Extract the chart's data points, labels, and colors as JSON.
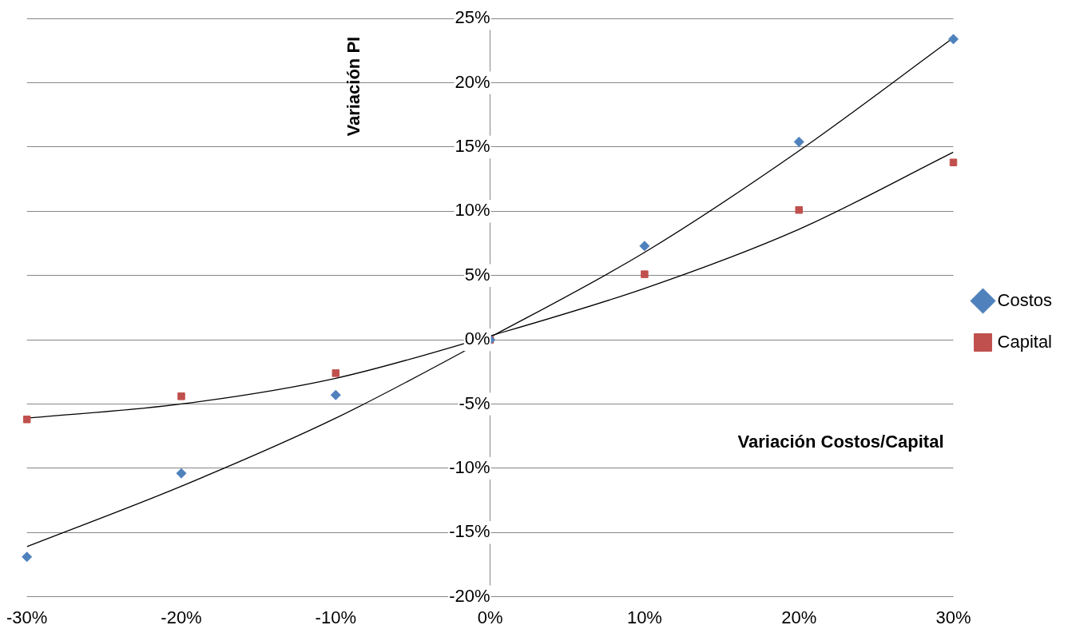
{
  "chart_data": {
    "type": "scatter",
    "xlabel": "Variación Costos/Capital",
    "ylabel": "Variación PI",
    "xlim": [
      -30,
      30
    ],
    "xticks": [
      {
        "value": -30,
        "label": "-30%"
      },
      {
        "value": -20,
        "label": "-20%"
      },
      {
        "value": -10,
        "label": "-10%"
      },
      {
        "value": 0,
        "label": "0%"
      },
      {
        "value": 10,
        "label": "10%"
      },
      {
        "value": 20,
        "label": "20%"
      },
      {
        "value": 30,
        "label": "30%"
      }
    ],
    "ylim": [
      -20,
      25
    ],
    "yticks": [
      {
        "value": -20,
        "label": "-20%"
      },
      {
        "value": -15,
        "label": "-15%"
      },
      {
        "value": -10,
        "label": "-10%"
      },
      {
        "value": -5,
        "label": "-5%"
      },
      {
        "value": 0,
        "label": "0%"
      },
      {
        "value": 5,
        "label": "5%"
      },
      {
        "value": 10,
        "label": "10%"
      },
      {
        "value": 15,
        "label": "15%"
      },
      {
        "value": 20,
        "label": "20%"
      },
      {
        "value": 25,
        "label": "25%"
      }
    ],
    "grid": "y",
    "legend": "right",
    "series": [
      {
        "name": "Costos",
        "type": "scatter",
        "marker": "diamond",
        "color": "#4f81bd",
        "x": [
          -30,
          -20,
          -10,
          0,
          10,
          20,
          30
        ],
        "values": [
          -16.9,
          -10.4,
          -4.3,
          0,
          7.3,
          15.4,
          23.4
        ]
      },
      {
        "name": "Capital",
        "type": "scatter",
        "marker": "square",
        "color": "#c0504d",
        "x": [
          -30,
          -20,
          -10,
          0,
          10,
          20,
          30
        ],
        "values": [
          -6.2,
          -4.4,
          -2.6,
          0,
          5.1,
          10.1,
          13.8
        ]
      },
      {
        "type": "line",
        "marker": "none",
        "color": "#000000",
        "x": [
          -30,
          -20,
          -10,
          0,
          10,
          20,
          30
        ],
        "values": [
          -16.1,
          -11.4,
          -6.1,
          0.2,
          6.8,
          14.7,
          23.5
        ]
      },
      {
        "type": "line",
        "marker": "none",
        "color": "#000000",
        "x": [
          -30,
          -20,
          -10,
          0,
          10,
          20,
          30
        ],
        "values": [
          -6.1,
          -5.0,
          -3.0,
          0.3,
          4.0,
          8.6,
          14.6
        ]
      }
    ]
  }
}
